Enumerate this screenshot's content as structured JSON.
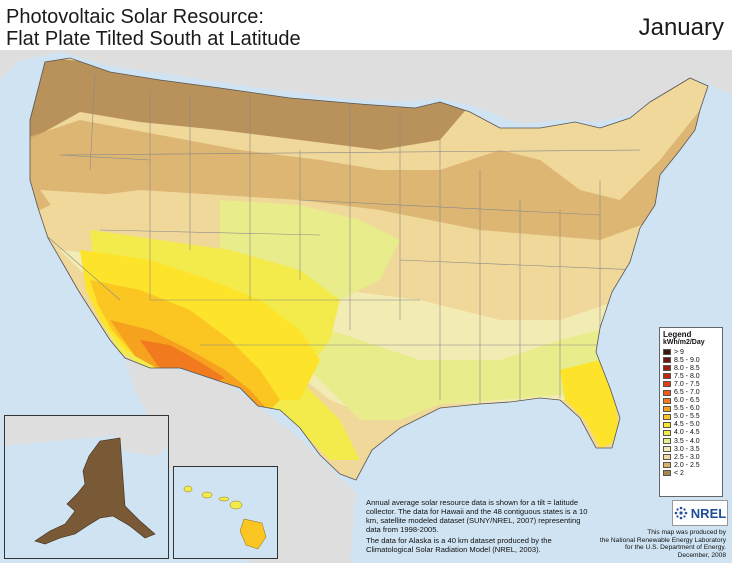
{
  "map": {
    "title_line1": "Photovoltaic Solar Resource:",
    "title_line2": "Flat Plate Tilted South at Latitude",
    "month": "January",
    "legend": {
      "title": "Legend",
      "units": "kWh/m2/Day",
      "classes": [
        {
          "label": "> 9",
          "color": "#3a1a0a"
        },
        {
          "label": "8.5 - 9.0",
          "color": "#6b1a10"
        },
        {
          "label": "8.0 - 8.5",
          "color": "#9a1e10"
        },
        {
          "label": "7.5 - 8.0",
          "color": "#c42412"
        },
        {
          "label": "7.0 - 7.5",
          "color": "#e33b13"
        },
        {
          "label": "6.5 - 7.0",
          "color": "#f0581a"
        },
        {
          "label": "6.0 - 6.5",
          "color": "#f27a1e"
        },
        {
          "label": "5.5 - 6.0",
          "color": "#f7a21f"
        },
        {
          "label": "5.0 - 5.5",
          "color": "#fbc522"
        },
        {
          "label": "4.5 - 5.0",
          "color": "#fde32a"
        },
        {
          "label": "4.0 - 4.5",
          "color": "#f3ea4c"
        },
        {
          "label": "3.5 - 4.0",
          "color": "#e9ec8a"
        },
        {
          "label": "3.0 - 3.5",
          "color": "#f3ebb4"
        },
        {
          "label": "2.5 - 3.0",
          "color": "#f0d79a"
        },
        {
          "label": "2.0 - 2.5",
          "color": "#d9b06c"
        },
        {
          "label": "< 2",
          "color": "#a9864c"
        }
      ]
    },
    "note_paragraph1": "Annual average solar resource data is shown for a tilt = latitude collector.  The data for Hawaii and the 48 contiguous states is a 10 km, satellite modeled dataset (SUNY/NREL, 2007) representing data from 1998-2005.",
    "note_paragraph2": "The data for Alaska is a 40 km dataset produced by the Climatological Solar Radiation Model (NREL, 2003).",
    "credit_lines": [
      "This map was produced by",
      "the National Renewable Energy Laboratory",
      "for the U.S. Department of Energy.",
      "December, 2008"
    ],
    "logo_text": "NREL",
    "colors": {
      "water": "#cfe3f2",
      "land_other": "#dedede",
      "alaska": "#7a5a36"
    }
  }
}
